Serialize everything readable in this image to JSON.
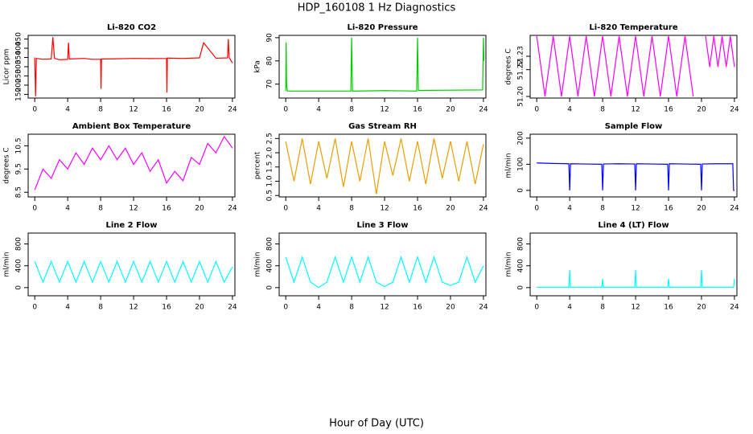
{
  "title": "HDP_160108  1 Hz Diagnostics",
  "xlabel": "Hour of Day (UTC)",
  "chart_data": [
    {
      "type": "line",
      "title": "Li-820 CO2",
      "ylabel": "Licor ppm",
      "color": "#ff0000",
      "x": [
        0,
        0.1,
        0.2,
        1,
        2,
        2.2,
        2.4,
        3,
        4,
        4.1,
        4.2,
        6,
        7,
        8,
        8.05,
        8.1,
        10,
        12,
        14,
        16,
        16.05,
        16.1,
        18,
        20,
        20.5,
        22,
        23.4,
        23.5,
        23.6,
        24
      ],
      "values": [
        350,
        140,
        345,
        340,
        342,
        460,
        345,
        338,
        340,
        430,
        342,
        345,
        340,
        340,
        180,
        342,
        343,
        345,
        344,
        345,
        160,
        347,
        345,
        348,
        430,
        346,
        348,
        450,
        350,
        320
      ],
      "xlim": [
        -0.8,
        24.3
      ],
      "xticks": [
        0,
        4,
        8,
        12,
        16,
        20,
        24
      ],
      "ylim": [
        130,
        470
      ],
      "yticks": [
        150,
        200,
        250,
        300,
        350,
        400,
        450
      ]
    },
    {
      "type": "line",
      "title": "Li-820 Pressure",
      "ylabel": "kPa",
      "color": "#00cd00",
      "x": [
        0,
        0.05,
        0.1,
        0.2,
        4,
        7.9,
        8,
        8.1,
        12,
        15.9,
        16,
        16.1,
        20,
        23.9,
        24,
        24.05
      ],
      "values": [
        67,
        88,
        70,
        67,
        67,
        67,
        90,
        67,
        67.2,
        67,
        90,
        67.3,
        67.4,
        67.5,
        90,
        80
      ],
      "xlim": [
        -0.8,
        24.3
      ],
      "xticks": [
        0,
        4,
        8,
        12,
        16,
        20,
        24
      ],
      "ylim": [
        64,
        91
      ],
      "yticks": [
        70,
        80,
        90
      ]
    },
    {
      "type": "line",
      "title": "Li-820 Temperature",
      "ylabel": "degrees C",
      "color": "#ff00ff",
      "x": [
        0,
        1,
        2,
        3,
        4,
        5,
        6,
        7,
        8,
        9,
        10,
        11,
        12,
        13,
        14,
        15,
        16,
        17,
        18,
        19,
        19.8,
        20.5,
        21,
        21.5,
        22,
        22.5,
        23,
        23.5,
        24
      ],
      "values": [
        51.245,
        51.2,
        51.245,
        51.2,
        51.245,
        51.2,
        51.245,
        51.2,
        51.245,
        51.2,
        51.245,
        51.2,
        51.245,
        51.2,
        51.245,
        51.2,
        51.245,
        51.2,
        51.245,
        51.2,
        null,
        51.245,
        51.222,
        51.245,
        51.222,
        51.245,
        51.222,
        51.245,
        51.222
      ],
      "xlim": [
        -0.8,
        24.3
      ],
      "xticks": [
        0,
        4,
        8,
        12,
        16,
        20,
        24
      ],
      "ylim": [
        51.1988,
        51.2456
      ],
      "yticks": [
        {
          "value": 51.2,
          "label": "51.20"
        },
        {
          "value": 51.22,
          "label": "51.22"
        },
        {
          "value": 51.23,
          "label": "51.23"
        }
      ]
    },
    {
      "type": "line",
      "title": "Ambient Box Temperature",
      "ylabel": "degrees C",
      "color": "#ff00ff",
      "x": [
        0,
        1,
        2,
        3,
        4,
        5,
        6,
        7,
        8,
        9,
        10,
        11,
        12,
        13,
        14,
        15,
        16,
        17,
        18,
        19,
        20,
        21,
        22,
        23,
        24
      ],
      "values": [
        8.6,
        9.5,
        9.1,
        9.9,
        9.5,
        10.2,
        9.7,
        10.4,
        9.9,
        10.5,
        9.9,
        10.4,
        9.7,
        10.2,
        9.4,
        9.9,
        8.9,
        9.4,
        9.0,
        10.0,
        9.7,
        10.6,
        10.2,
        10.9,
        10.4
      ],
      "xlim": [
        -0.8,
        24.3
      ],
      "xticks": [
        0,
        4,
        8,
        12,
        16,
        20,
        24
      ],
      "ylim": [
        8.3,
        11.0
      ],
      "yticks": [
        8.5,
        9.5,
        10.5
      ]
    },
    {
      "type": "line",
      "title": "Gas Stream RH",
      "ylabel": "percent",
      "color": "#e8a000",
      "x": [
        0,
        1,
        2,
        3,
        4,
        5,
        6,
        7,
        8,
        9,
        10,
        11,
        12,
        13,
        14,
        15,
        16,
        17,
        18,
        19,
        20,
        21,
        22,
        23,
        24
      ],
      "values": [
        2.4,
        1.0,
        2.5,
        0.9,
        2.4,
        1.1,
        2.5,
        0.8,
        2.4,
        1.0,
        2.5,
        0.55,
        2.4,
        1.2,
        2.5,
        1.0,
        2.4,
        0.9,
        2.5,
        1.1,
        2.4,
        1.0,
        2.4,
        0.9,
        2.3
      ],
      "xlim": [
        -0.8,
        24.3
      ],
      "xticks": [
        0,
        4,
        8,
        12,
        16,
        20,
        24
      ],
      "ylim": [
        0.45,
        2.65
      ],
      "yticks": [
        0.5,
        {
          "value": 1,
          "label": "1.0"
        },
        1.5,
        {
          "value": 2,
          "label": "2.0"
        },
        2.5
      ]
    },
    {
      "type": "line",
      "title": "Sample Flow",
      "ylabel": "ml/min",
      "color": "#0000ff",
      "x": [
        0,
        2,
        3.9,
        4,
        4.1,
        6,
        7.9,
        8,
        8.1,
        10,
        11.9,
        12,
        12.1,
        14,
        15.9,
        16,
        16.1,
        18,
        19.9,
        20,
        20.1,
        22,
        23.8,
        23.9,
        24
      ],
      "values": [
        105,
        103,
        102,
        0,
        102,
        101,
        100,
        0,
        101,
        102,
        101,
        0,
        102,
        101,
        100,
        0,
        102,
        101,
        100,
        0,
        101,
        102,
        102,
        0,
        0
      ],
      "xlim": [
        -0.8,
        24.3
      ],
      "xticks": [
        0,
        4,
        8,
        12,
        16,
        20,
        24
      ],
      "ylim": [
        -25,
        215
      ],
      "yticks": [
        0,
        100,
        200
      ]
    },
    {
      "type": "line",
      "title": "Line 2 Flow",
      "ylabel": "ml/min",
      "color": "#00ffff",
      "x": [
        0,
        1,
        2,
        3,
        4,
        5,
        6,
        7,
        8,
        9,
        10,
        11,
        12,
        13,
        14,
        15,
        16,
        17,
        18,
        19,
        20,
        21,
        22,
        23,
        24
      ],
      "values": [
        480,
        100,
        480,
        100,
        480,
        100,
        480,
        100,
        480,
        100,
        480,
        100,
        480,
        100,
        480,
        100,
        480,
        100,
        480,
        100,
        480,
        100,
        480,
        100,
        380
      ],
      "xlim": [
        -0.8,
        24.3
      ],
      "xticks": [
        0,
        4,
        8,
        12,
        16,
        20,
        24
      ],
      "ylim": [
        -150,
        1000
      ],
      "yticks": [
        0,
        400,
        800
      ]
    },
    {
      "type": "line",
      "title": "Line 3 Flow",
      "ylabel": "ml/min",
      "color": "#00ffff",
      "x": [
        0,
        1,
        2,
        3,
        4,
        5,
        6,
        7,
        8,
        9,
        10,
        11,
        12,
        13,
        14,
        15,
        16,
        17,
        18,
        19,
        20,
        21,
        22,
        23,
        24
      ],
      "values": [
        560,
        100,
        560,
        100,
        0,
        100,
        560,
        100,
        560,
        100,
        560,
        100,
        20,
        100,
        560,
        100,
        560,
        100,
        560,
        100,
        40,
        100,
        560,
        100,
        400
      ],
      "xlim": [
        -0.8,
        24.3
      ],
      "xticks": [
        0,
        4,
        8,
        12,
        16,
        20,
        24
      ],
      "ylim": [
        -150,
        1000
      ],
      "yticks": [
        0,
        400,
        800
      ]
    },
    {
      "type": "line",
      "title": "Line 4 (LT) Flow",
      "ylabel": "ml/min",
      "color": "#00ffff",
      "x": [
        0,
        3.9,
        4,
        4.1,
        7.9,
        8,
        8.1,
        11.9,
        12,
        12.1,
        15.9,
        16,
        16.1,
        19.9,
        20,
        20.1,
        23.9,
        24
      ],
      "values": [
        5,
        5,
        320,
        5,
        5,
        160,
        5,
        5,
        320,
        5,
        5,
        160,
        5,
        5,
        320,
        5,
        5,
        160
      ],
      "xlim": [
        -0.8,
        24.3
      ],
      "xticks": [
        0,
        4,
        8,
        12,
        16,
        20,
        24
      ],
      "ylim": [
        -150,
        1000
      ],
      "yticks": [
        0,
        400,
        800
      ]
    }
  ]
}
